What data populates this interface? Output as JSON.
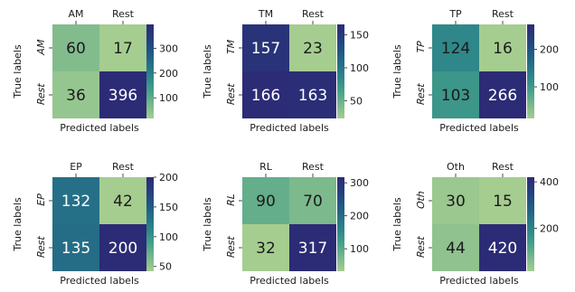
{
  "chart_data": [
    {
      "type": "heatmap",
      "row_labels": [
        "AM",
        "Rest"
      ],
      "col_labels": [
        "AM",
        "Rest"
      ],
      "values": [
        [
          60,
          17
        ],
        [
          36,
          396
        ]
      ],
      "xlabel": "Predicted labels",
      "ylabel": "True labels",
      "colorbar": {
        "min": 17,
        "max": 396,
        "ticks": [
          100,
          200,
          300
        ]
      }
    },
    {
      "type": "heatmap",
      "row_labels": [
        "TM",
        "Rest"
      ],
      "col_labels": [
        "TM",
        "Rest"
      ],
      "values": [
        [
          157,
          23
        ],
        [
          166,
          163
        ]
      ],
      "xlabel": "Predicted labels",
      "ylabel": "True labels",
      "colorbar": {
        "min": 23,
        "max": 166,
        "ticks": [
          50,
          100,
          150
        ]
      }
    },
    {
      "type": "heatmap",
      "row_labels": [
        "TP",
        "Rest"
      ],
      "col_labels": [
        "TP",
        "Rest"
      ],
      "values": [
        [
          124,
          16
        ],
        [
          103,
          266
        ]
      ],
      "xlabel": "Predicted labels",
      "ylabel": "True labels",
      "colorbar": {
        "min": 16,
        "max": 266,
        "ticks": [
          100,
          200
        ]
      }
    },
    {
      "type": "heatmap",
      "row_labels": [
        "EP",
        "Rest"
      ],
      "col_labels": [
        "EP",
        "Rest"
      ],
      "values": [
        [
          132,
          42
        ],
        [
          135,
          200
        ]
      ],
      "xlabel": "Predicted labels",
      "ylabel": "True labels",
      "colorbar": {
        "min": 42,
        "max": 200,
        "ticks": [
          50,
          100,
          150,
          200
        ]
      }
    },
    {
      "type": "heatmap",
      "row_labels": [
        "RL",
        "Rest"
      ],
      "col_labels": [
        "RL",
        "Rest"
      ],
      "values": [
        [
          90,
          70
        ],
        [
          32,
          317
        ]
      ],
      "xlabel": "Predicted labels",
      "ylabel": "True labels",
      "colorbar": {
        "min": 32,
        "max": 317,
        "ticks": [
          100,
          200,
          300
        ]
      }
    },
    {
      "type": "heatmap",
      "row_labels": [
        "Oth",
        "Rest"
      ],
      "col_labels": [
        "Oth",
        "Rest"
      ],
      "values": [
        [
          30,
          15
        ],
        [
          44,
          420
        ]
      ],
      "xlabel": "Predicted labels",
      "ylabel": "True labels",
      "colorbar": {
        "min": 15,
        "max": 420,
        "ticks": [
          200,
          400
        ]
      }
    }
  ]
}
